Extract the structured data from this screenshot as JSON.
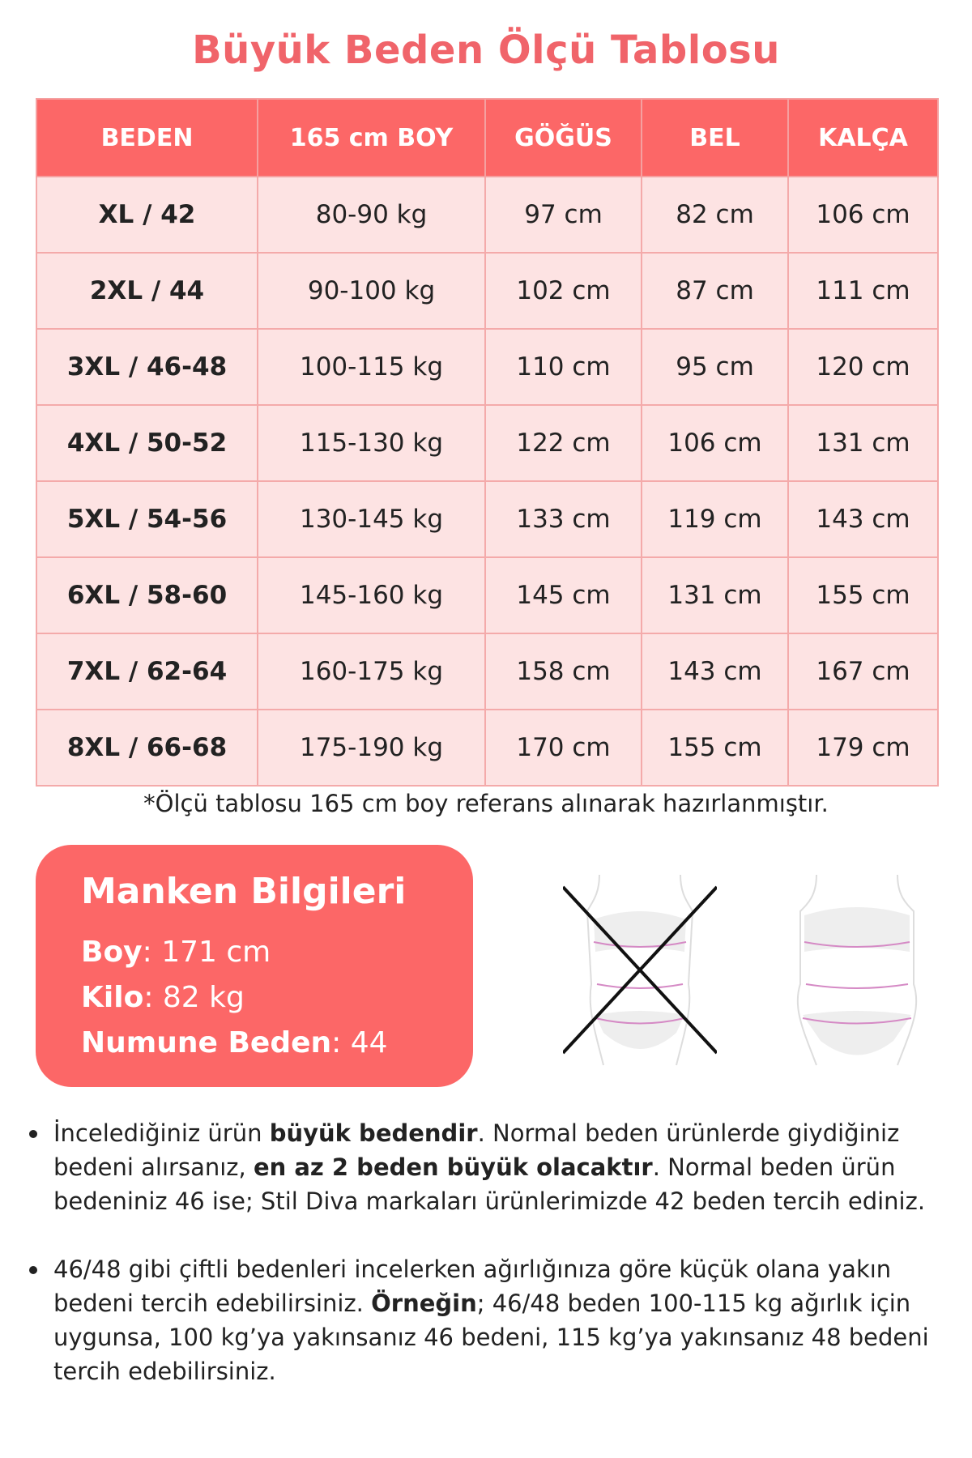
{
  "title": "Büyük Beden Ölçü Tablosu",
  "table": {
    "headers": [
      "BEDEN",
      "165 cm BOY",
      "GÖĞÜS",
      "BEL",
      "KALÇA"
    ],
    "rows": [
      [
        "XL / 42",
        "80-90 kg",
        "97 cm",
        "82 cm",
        "106 cm"
      ],
      [
        "2XL / 44",
        "90-100 kg",
        "102 cm",
        "87 cm",
        "111 cm"
      ],
      [
        "3XL / 46-48",
        "100-115 kg",
        "110 cm",
        "95 cm",
        "120 cm"
      ],
      [
        "4XL / 50-52",
        "115-130 kg",
        "122 cm",
        "106 cm",
        "131 cm"
      ],
      [
        "5XL / 54-56",
        "130-145 kg",
        "133 cm",
        "119 cm",
        "143 cm"
      ],
      [
        "6XL / 58-60",
        "145-160 kg",
        "145 cm",
        "131 cm",
        "155 cm"
      ],
      [
        "7XL / 62-64",
        "160-175 kg",
        "158 cm",
        "143 cm",
        "167 cm"
      ],
      [
        "8XL / 66-68",
        "175-190 kg",
        "170 cm",
        "155 cm",
        "179 cm"
      ]
    ]
  },
  "note": "*Ölçü tablosu 165 cm boy referans alınarak hazırlanmıştır.",
  "manken": {
    "heading": "Manken Bilgileri",
    "boy_label": "Boy",
    "boy_value": ": 171 cm",
    "kilo_label": "Kilo",
    "kilo_value": ": 82 kg",
    "beden_label": "Numune Beden",
    "beden_value": ": 44"
  },
  "colors": {
    "accent": "#fc6767",
    "row_bg": "#fde3e3",
    "title": "#f0646a"
  },
  "bullets": [
    {
      "parts": [
        {
          "t": "İncelediğiniz ürün ",
          "b": false
        },
        {
          "t": "büyük bedendir",
          "b": true
        },
        {
          "t": ". Normal beden ürünlerde giydiğiniz bedeni alırsanız, ",
          "b": false
        },
        {
          "t": "en az 2 beden büyük olacaktır",
          "b": true
        },
        {
          "t": ". Normal beden ürün bedeniniz 46 ise; Stil Diva markaları ürünlerimizde 42 beden tercih ediniz.",
          "b": false
        }
      ]
    },
    {
      "parts": [
        {
          "t": "46/48 gibi çiftli bedenleri incelerken ağırlığınıza göre küçük olana yakın bedeni tercih edebilirsiniz. ",
          "b": false
        },
        {
          "t": "Örneğin",
          "b": true
        },
        {
          "t": "; 46/48 beden 100-115 kg ağırlık için uygunsa, 100 kg’ya yakınsanız 46 bedeni, 115 kg’ya yakınsanız 48 bedeni tercih edebilirsiniz.",
          "b": false
        }
      ]
    }
  ]
}
